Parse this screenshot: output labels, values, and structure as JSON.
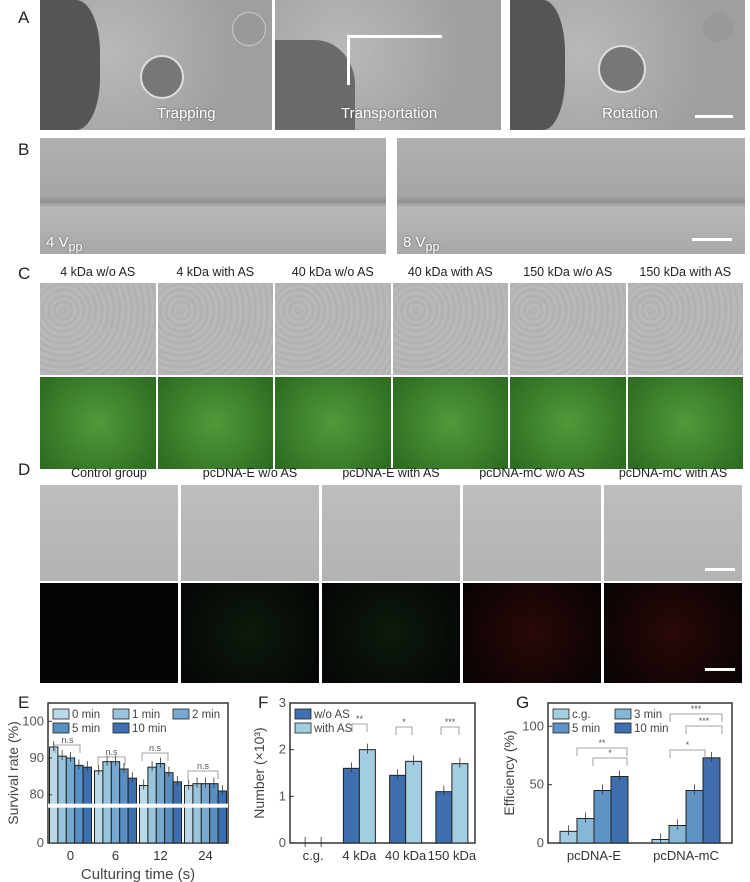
{
  "panel_labels": {
    "a": "A",
    "b": "B",
    "c": "C",
    "d": "D",
    "e": "E",
    "f": "F",
    "g": "G"
  },
  "panel_a": {
    "captions": [
      "Trapping",
      "Transportation",
      "Rotation"
    ]
  },
  "panel_b": {
    "captions": [
      "4 V",
      "8 V"
    ],
    "subscript": "pp"
  },
  "panel_c": {
    "columns": [
      "4 kDa w/o AS",
      "4 kDa with AS",
      "40 kDa w/o AS",
      "40 kDa with AS",
      "150 kDa w/o AS",
      "150 kDa with AS"
    ]
  },
  "panel_d": {
    "columns": [
      "Control group",
      "pcDNA-E w/o AS",
      "pcDNA-E with AS",
      "pcDNA-mC w/o AS",
      "pcDNA-mC with AS"
    ]
  },
  "chart_data": [
    {
      "type": "bar",
      "panel": "E",
      "categories": [
        "0",
        "6",
        "12",
        "24"
      ],
      "xlabel": "Culturing time (s)",
      "ylabel": "Survival rate (%)",
      "yticks": [
        "0",
        "80",
        "90",
        "100"
      ],
      "ylim": [
        0,
        105
      ],
      "axis_break": true,
      "legend": "top",
      "series": [
        {
          "name": "0 min",
          "color": "#b9d8e8",
          "values": [
            93,
            86.5,
            82.5,
            82.5
          ]
        },
        {
          "name": "1 min",
          "color": "#98c4dc",
          "values": [
            90.5,
            89,
            87.5,
            83
          ]
        },
        {
          "name": "2 min",
          "color": "#77a9d0",
          "values": [
            90,
            89,
            88.5,
            83
          ]
        },
        {
          "name": "5 min",
          "color": "#5a8fc4",
          "values": [
            88,
            87,
            86,
            83
          ]
        },
        {
          "name": "10 min",
          "color": "#3e70b0",
          "values": [
            87.5,
            84.5,
            83.5,
            81
          ]
        }
      ],
      "annotations": [
        "n.s",
        "n.s",
        "n.s",
        "n.s"
      ]
    },
    {
      "type": "bar",
      "panel": "F",
      "categories": [
        "c.g.",
        "4 kDa",
        "40 kDa",
        "150 kDa"
      ],
      "xlabel": "",
      "ylabel": "Number (×10³)",
      "yticks": [
        "0",
        "1",
        "2",
        "3"
      ],
      "ylim": [
        0,
        3
      ],
      "legend": "top-left",
      "series": [
        {
          "name": "w/o AS",
          "color": "#3f6fae",
          "values": [
            0,
            1.6,
            1.45,
            1.1
          ]
        },
        {
          "name": "with AS",
          "color": "#a3cde0",
          "values": [
            0,
            2.0,
            1.75,
            1.7
          ]
        }
      ],
      "annotations": [
        "**",
        "*",
        "***"
      ]
    },
    {
      "type": "bar",
      "panel": "G",
      "categories": [
        "pcDNA-E",
        "pcDNA-mC"
      ],
      "xlabel": "",
      "ylabel": "Efficiency (%)",
      "yticks": [
        "0",
        "50",
        "100"
      ],
      "ylim": [
        0,
        120
      ],
      "legend": "top-left",
      "series": [
        {
          "name": "c.g.",
          "color": "#a3cde0",
          "values": [
            10,
            3
          ]
        },
        {
          "name": "3 min",
          "color": "#86b7d6",
          "values": [
            21,
            15
          ]
        },
        {
          "name": "5 min",
          "color": "#5f93c6",
          "values": [
            45,
            45
          ]
        },
        {
          "name": "10 min",
          "color": "#3f6fae",
          "values": [
            57,
            73
          ]
        }
      ],
      "annotations": [
        "**",
        "*",
        "***",
        "***",
        "*"
      ]
    }
  ]
}
